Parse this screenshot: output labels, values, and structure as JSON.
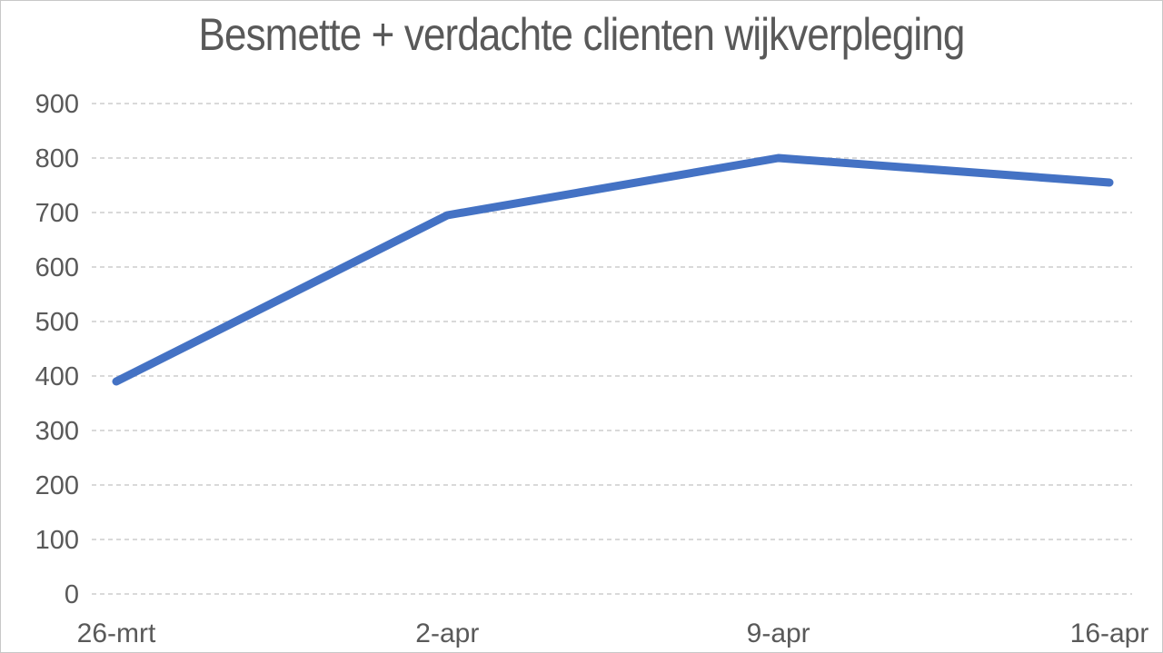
{
  "chart_data": {
    "type": "line",
    "title": "Besmette + verdachte clienten wijkverpleging",
    "categories": [
      "26-mrt",
      "2-apr",
      "9-apr",
      "16-apr"
    ],
    "series": [
      {
        "name": "Besmette + verdachte clienten wijkverpleging",
        "values": [
          390,
          695,
          800,
          755
        ]
      }
    ],
    "xlabel": "",
    "ylabel": "",
    "ylim": [
      0,
      900
    ],
    "ytick_step": 100,
    "yticks": [
      0,
      100,
      200,
      300,
      400,
      500,
      600,
      700,
      800,
      900
    ],
    "grid": "horizontal-dashed",
    "legend": "none",
    "colors": {
      "line": "#4472C4",
      "title_text": "#595959",
      "axis_text": "#595959",
      "gridline": "#D9D9D9",
      "border": "#C8C8C8",
      "background": "#FFFFFF"
    }
  }
}
